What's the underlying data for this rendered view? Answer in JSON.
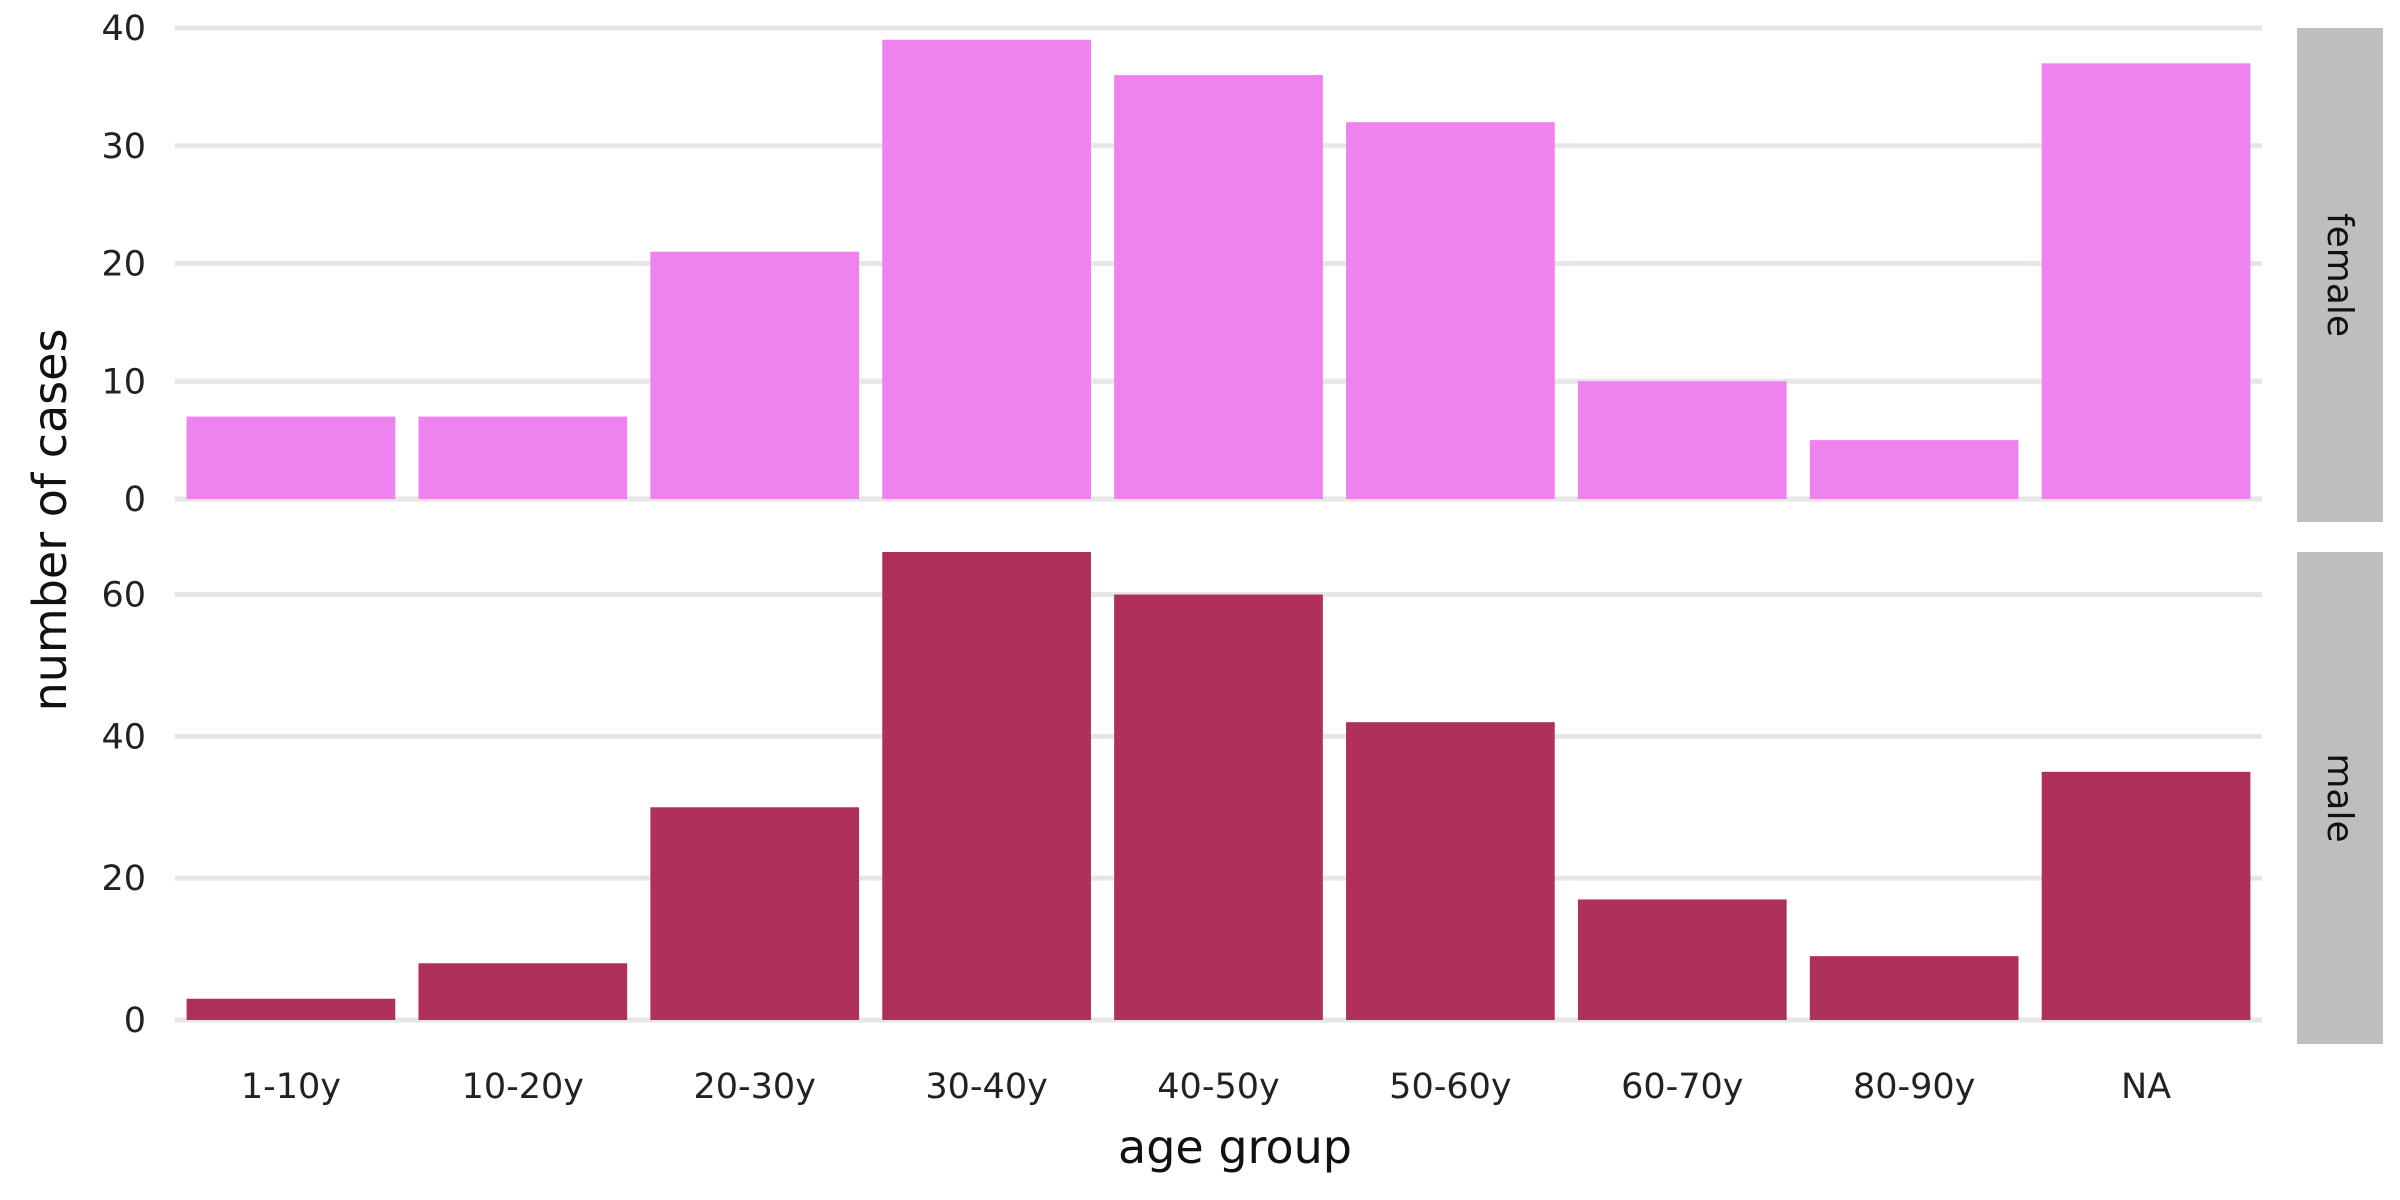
{
  "chart_data": {
    "type": "bar",
    "xlabel": "age group",
    "ylabel": "number of cases",
    "categories": [
      "1-10y",
      "10-20y",
      "20-30y",
      "30-40y",
      "40-50y",
      "50-60y",
      "60-70y",
      "80-90y",
      "NA"
    ],
    "grid": true,
    "facet_position": "right",
    "panels": [
      {
        "name": "female",
        "color": "#ee82ee",
        "ylim": [
          0,
          40
        ],
        "yticks": [
          0,
          10,
          20,
          30,
          40
        ],
        "values": [
          7,
          7,
          21,
          39,
          36,
          32,
          10,
          5,
          37
        ]
      },
      {
        "name": "male",
        "color": "#b0305c",
        "ylim": [
          0,
          66
        ],
        "yticks": [
          0,
          20,
          40,
          60
        ],
        "values": [
          3,
          8,
          30,
          66,
          60,
          42,
          17,
          9,
          35
        ]
      }
    ]
  }
}
